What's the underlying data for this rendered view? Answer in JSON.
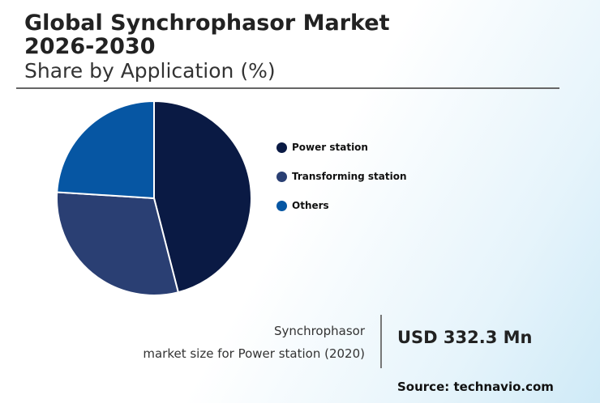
{
  "chart_data": {
    "type": "pie",
    "title": "Global Synchrophasor Market 2026-2030",
    "subtitle": "Share by Application (%)",
    "categories": [
      "Power station",
      "Transforming station",
      "Others"
    ],
    "values": [
      46,
      30,
      24
    ],
    "colors": [
      "#0a1a44",
      "#2a3f73",
      "#0656a3"
    ],
    "annotation": {
      "label": [
        "Synchrophasor",
        "market size for Power station (2020)"
      ],
      "value": "USD 332.3 Mn"
    },
    "source": "Source: technavio.com"
  }
}
